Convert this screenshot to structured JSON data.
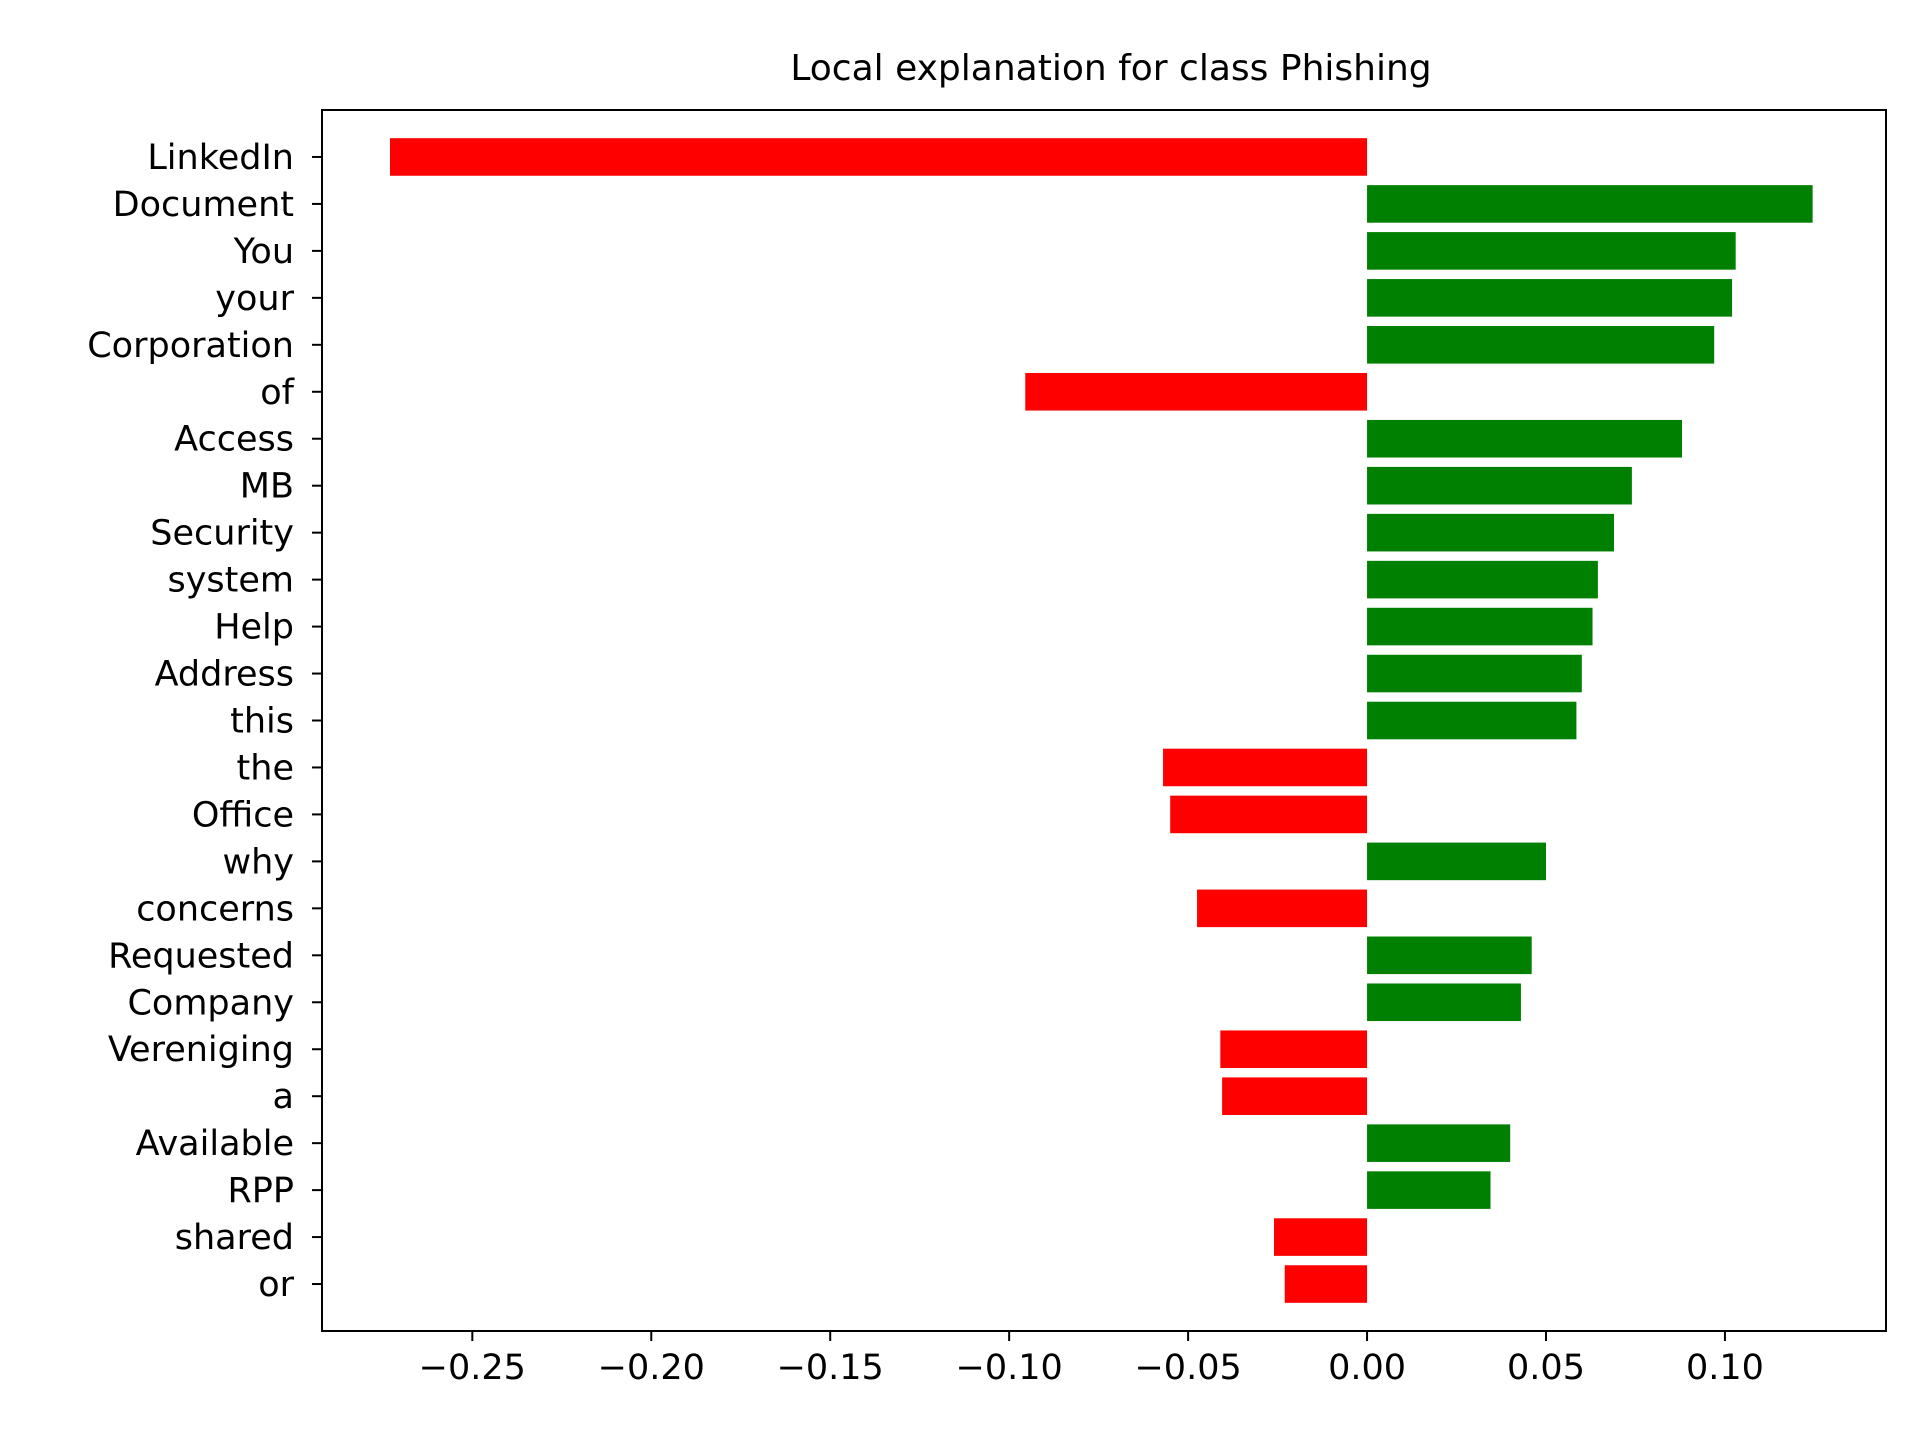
{
  "chart_data": {
    "type": "bar",
    "orientation": "horizontal",
    "title": "Local explanation for class Phishing",
    "xlabel": "",
    "ylabel": "",
    "xlim": [
      -0.292,
      0.145
    ],
    "xticks": [
      -0.25,
      -0.2,
      -0.15,
      -0.1,
      -0.05,
      0.0,
      0.05,
      0.1
    ],
    "xtick_labels": [
      "−0.25",
      "−0.20",
      "−0.15",
      "−0.10",
      "−0.05",
      "0.00",
      "0.05",
      "0.10"
    ],
    "grid": false,
    "legend": "none",
    "colors": {
      "positive": "#008000",
      "negative": "#ff0000"
    },
    "categories": [
      "LinkedIn",
      "Document",
      "You",
      "your",
      "Corporation",
      "of",
      "Access",
      "MB",
      "Security",
      "system",
      "Help",
      "Address",
      "this",
      "the",
      "Office",
      "why",
      "concerns",
      "Requested",
      "Company",
      "Vereniging",
      "a",
      "Available",
      "RPP",
      "shared",
      "or"
    ],
    "values": [
      -0.273,
      0.1245,
      0.103,
      0.102,
      0.097,
      -0.0955,
      0.088,
      0.074,
      0.069,
      0.0645,
      0.063,
      0.06,
      0.0585,
      -0.057,
      -0.055,
      0.05,
      -0.0475,
      0.046,
      0.043,
      -0.041,
      -0.0405,
      0.04,
      0.0345,
      -0.026,
      -0.023
    ]
  }
}
